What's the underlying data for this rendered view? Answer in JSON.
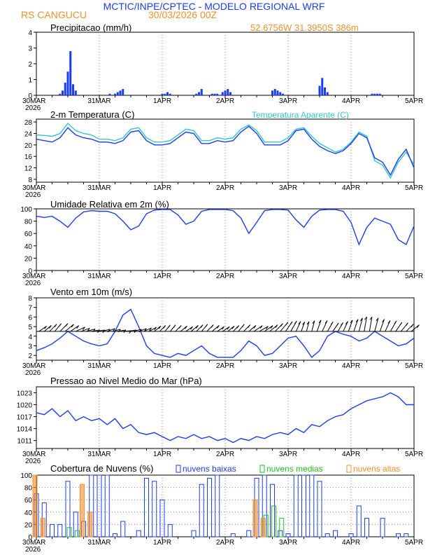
{
  "header": {
    "title": "MCTIC/INPE/CPTEC - MODELO REGIONAL WRF",
    "station": "RS CANGUCU",
    "run": "30/03/2026 00Z",
    "coords": "52.6756W 31.3950S 386m"
  },
  "colors": {
    "blue": "#1c3cf0",
    "cyan": "#30c8c8",
    "orange": "#f09030",
    "green": "#20c020",
    "black": "#000000"
  },
  "x_axis": {
    "labels": [
      "30MAR",
      "31MAR",
      "1APR",
      "2APR",
      "3APR",
      "4APR",
      "5APR"
    ],
    "year": "2026",
    "hours_total": 144
  },
  "chart_data": [
    {
      "id": "precip",
      "type": "bar",
      "title": "Precipitacao (mm/h)",
      "ylim": [
        0,
        4
      ],
      "yticks": [
        0,
        1,
        2,
        3,
        4
      ],
      "series": [
        {
          "name": "Precipitacao",
          "color": "#1c3cf0",
          "x": [
            9,
            10,
            11,
            12,
            13,
            14,
            15,
            28,
            30,
            31,
            32,
            33,
            48,
            49,
            50,
            51,
            61,
            62,
            63,
            67,
            68,
            69,
            71,
            72,
            73,
            74,
            90,
            91,
            92,
            93,
            94,
            108,
            109,
            110,
            111,
            128,
            129,
            130,
            131
          ],
          "values": [
            0.1,
            0.3,
            0.8,
            1.5,
            2.8,
            0.7,
            0.3,
            0.1,
            0.1,
            0.2,
            0.3,
            0.4,
            0.1,
            0.1,
            0.2,
            0.1,
            0.1,
            0.2,
            0.4,
            0.1,
            0.1,
            0.1,
            0.2,
            0.3,
            0.4,
            0.2,
            0.3,
            0.4,
            0.3,
            0.2,
            0.1,
            0.6,
            1.1,
            0.5,
            0.2,
            0.1,
            0.1,
            0.1,
            0.1
          ]
        }
      ]
    },
    {
      "id": "temp",
      "type": "line",
      "title": "2-m Temperatura (C)",
      "legend": "Temperatura Aparente (C)",
      "ylim": [
        7,
        29
      ],
      "yticks": [
        8,
        12,
        16,
        20,
        24,
        28
      ],
      "series": [
        {
          "name": "Temperatura Aparente",
          "color": "#30c8c8",
          "x": [
            0,
            3,
            6,
            9,
            12,
            15,
            18,
            21,
            24,
            27,
            30,
            33,
            36,
            39,
            42,
            45,
            48,
            51,
            54,
            57,
            60,
            63,
            66,
            69,
            72,
            75,
            78,
            81,
            84,
            87,
            90,
            93,
            96,
            99,
            102,
            105,
            108,
            111,
            114,
            117,
            120,
            123,
            126,
            129,
            132,
            135,
            138,
            141,
            144
          ],
          "values": [
            23.5,
            23.3,
            23.0,
            24.0,
            27.5,
            25.0,
            24.0,
            23.5,
            22.0,
            22.0,
            21.5,
            22.5,
            25.5,
            26.0,
            22.5,
            21.0,
            21.0,
            21.5,
            23.5,
            25.5,
            25.0,
            21.5,
            21.5,
            22.5,
            22.0,
            22.5,
            25.5,
            27.0,
            25.0,
            21.0,
            21.0,
            21.0,
            22.5,
            25.5,
            26.0,
            23.0,
            20.5,
            19.0,
            17.5,
            18.5,
            21.0,
            24.5,
            23.0,
            14.5,
            13.0,
            8.5,
            14.0,
            17.5,
            13.0
          ]
        },
        {
          "name": "2-m Temperatura",
          "color": "#1c3cf0",
          "x": [
            0,
            3,
            6,
            9,
            12,
            15,
            18,
            21,
            24,
            27,
            30,
            33,
            36,
            39,
            42,
            45,
            48,
            51,
            54,
            57,
            60,
            63,
            66,
            69,
            72,
            75,
            78,
            81,
            84,
            87,
            90,
            93,
            96,
            99,
            102,
            105,
            108,
            111,
            114,
            117,
            120,
            123,
            126,
            129,
            132,
            135,
            138,
            141,
            144
          ],
          "values": [
            22.0,
            21.5,
            21.0,
            22.5,
            26.0,
            23.5,
            22.5,
            22.0,
            21.0,
            21.0,
            20.5,
            21.5,
            24.5,
            25.0,
            21.5,
            20.0,
            20.0,
            20.5,
            22.5,
            24.5,
            24.0,
            20.5,
            20.5,
            21.5,
            21.0,
            21.5,
            24.5,
            26.5,
            24.0,
            20.0,
            20.0,
            20.0,
            21.5,
            25.0,
            25.5,
            22.0,
            19.5,
            18.0,
            17.0,
            18.0,
            20.5,
            24.0,
            22.5,
            15.5,
            14.0,
            9.5,
            15.0,
            18.5,
            12.0
          ]
        }
      ]
    },
    {
      "id": "rh",
      "type": "line",
      "title": "Umidade Relativa em 2m (%)",
      "ylim": [
        0,
        100
      ],
      "yticks": [
        0,
        20,
        40,
        60,
        80,
        100
      ],
      "series": [
        {
          "name": "Umidade Relativa",
          "color": "#1c3cf0",
          "x": [
            0,
            3,
            6,
            9,
            12,
            15,
            18,
            21,
            24,
            27,
            30,
            33,
            36,
            39,
            42,
            45,
            48,
            51,
            54,
            57,
            60,
            63,
            66,
            69,
            72,
            75,
            78,
            81,
            84,
            87,
            90,
            93,
            96,
            99,
            102,
            105,
            108,
            111,
            114,
            117,
            120,
            123,
            126,
            129,
            132,
            135,
            138,
            141,
            144
          ],
          "values": [
            88,
            86,
            88,
            80,
            70,
            85,
            95,
            97,
            96,
            96,
            92,
            80,
            66,
            72,
            92,
            98,
            99,
            99,
            90,
            75,
            80,
            96,
            99,
            99,
            99,
            97,
            85,
            60,
            78,
            97,
            99,
            99,
            98,
            82,
            70,
            88,
            98,
            99,
            99,
            96,
            78,
            42,
            70,
            85,
            80,
            75,
            50,
            42,
            72
          ]
        }
      ]
    },
    {
      "id": "wind",
      "type": "line",
      "title": "Vento em 10m (m/s)",
      "ylim": [
        1.5,
        8
      ],
      "yticks": [
        2,
        3,
        4,
        5,
        6,
        7,
        8
      ],
      "series": [
        {
          "name": "Vento",
          "color": "#1c3cf0",
          "x": [
            0,
            3,
            6,
            9,
            12,
            15,
            18,
            21,
            24,
            27,
            30,
            33,
            36,
            39,
            42,
            45,
            48,
            51,
            54,
            57,
            60,
            63,
            66,
            69,
            72,
            75,
            78,
            81,
            84,
            87,
            90,
            93,
            96,
            99,
            102,
            105,
            108,
            111,
            114,
            117,
            120,
            123,
            126,
            129,
            132,
            135,
            138,
            141,
            144
          ],
          "values": [
            2.5,
            2.8,
            3.2,
            3.8,
            4.5,
            4.0,
            3.5,
            3.2,
            3.0,
            3.2,
            4.5,
            6.2,
            6.8,
            5.0,
            3.0,
            2.2,
            2.0,
            1.8,
            2.2,
            2.0,
            2.5,
            3.0,
            2.2,
            1.8,
            1.8,
            1.8,
            2.5,
            3.5,
            3.0,
            2.0,
            2.2,
            3.0,
            3.8,
            4.0,
            3.0,
            1.8,
            2.5,
            4.0,
            4.5,
            4.2,
            4.0,
            3.5,
            3.8,
            4.5,
            4.0,
            3.5,
            3.0,
            3.2,
            3.8
          ]
        }
      ],
      "barbs": {
        "x": [
          1,
          3,
          5,
          7,
          9,
          11,
          13,
          15,
          17,
          19,
          21,
          23,
          25,
          27,
          29,
          31,
          33,
          35,
          37,
          39,
          41,
          43,
          45,
          47,
          49,
          51,
          53,
          55,
          57,
          59,
          61,
          63,
          65,
          67,
          69,
          71,
          73,
          75,
          77,
          79,
          81,
          83,
          85,
          87,
          89,
          91,
          93,
          95,
          97,
          99,
          101,
          103,
          105,
          107,
          109,
          111,
          113,
          115,
          117,
          119,
          121,
          123,
          125,
          127,
          129,
          131,
          133,
          135,
          137,
          139,
          141,
          143
        ],
        "angles": [
          -35,
          -40,
          -45,
          -50,
          -45,
          -40,
          -35,
          -25,
          -20,
          -15,
          -10,
          -10,
          -15,
          -20,
          -15,
          -10,
          -5,
          -10,
          -15,
          -20,
          -25,
          -30,
          -40,
          -45,
          -50,
          -50,
          -45,
          -40,
          -35,
          -40,
          -45,
          -50,
          -45,
          -40,
          -35,
          -35,
          -40,
          -45,
          -50,
          -45,
          -40,
          -35,
          -30,
          -35,
          -40,
          -45,
          -50,
          -55,
          -60,
          -65,
          -70,
          -75,
          -75,
          -70,
          -65,
          -60,
          -55,
          -60,
          -65,
          -70,
          -70,
          -75,
          -80,
          -80,
          -75,
          -70,
          -65,
          -60,
          -55,
          -50,
          -45,
          -40
        ],
        "speeds": [
          4,
          4,
          5,
          5,
          6,
          6,
          5,
          5,
          4,
          4,
          3,
          3,
          3,
          3,
          3,
          3,
          3,
          3,
          3,
          3,
          3,
          3,
          3,
          3,
          3,
          3,
          3,
          3,
          3,
          4,
          4,
          4,
          4,
          4,
          3,
          3,
          3,
          3,
          4,
          4,
          4,
          5,
          5,
          5,
          5,
          6,
          7,
          7,
          7,
          6,
          5,
          5,
          6,
          7,
          7,
          6,
          5,
          5,
          6,
          7,
          8,
          9,
          10,
          10,
          9,
          8,
          7,
          7,
          6,
          6,
          5,
          5
        ]
      }
    },
    {
      "id": "pressure",
      "type": "line",
      "title": "Pressao ao Nivel Medio do Mar (hPa)",
      "ylim": [
        1009,
        1024.5
      ],
      "yticks": [
        1011,
        1014,
        1017,
        1020,
        1023
      ],
      "series": [
        {
          "name": "Pressao",
          "color": "#1c3cf0",
          "x": [
            0,
            3,
            6,
            9,
            12,
            15,
            18,
            21,
            24,
            27,
            30,
            33,
            36,
            39,
            42,
            45,
            48,
            51,
            54,
            57,
            60,
            63,
            66,
            69,
            72,
            75,
            78,
            81,
            84,
            87,
            90,
            93,
            96,
            99,
            102,
            105,
            108,
            111,
            114,
            117,
            120,
            123,
            126,
            129,
            132,
            135,
            138,
            141,
            144
          ],
          "values": [
            1018.0,
            1017.5,
            1019.0,
            1017.0,
            1018.5,
            1016.0,
            1017.0,
            1016.0,
            1016.5,
            1015.0,
            1016.5,
            1014.0,
            1015.0,
            1013.0,
            1012.5,
            1013.0,
            1012.0,
            1011.0,
            1012.0,
            1011.5,
            1012.5,
            1011.5,
            1012.0,
            1011.0,
            1011.5,
            1010.5,
            1011.5,
            1011.0,
            1012.0,
            1011.5,
            1012.5,
            1013.0,
            1012.5,
            1014.0,
            1013.0,
            1015.0,
            1014.5,
            1016.0,
            1017.0,
            1017.5,
            1019.0,
            1020.0,
            1021.0,
            1021.5,
            1022.0,
            1023.0,
            1022.0,
            1020.0,
            1020.0
          ]
        }
      ]
    },
    {
      "id": "clouds",
      "type": "bar",
      "title": "Cobertura de Nuvens (%)",
      "ylim": [
        0,
        100
      ],
      "yticks": [
        0,
        20,
        40,
        60,
        80,
        100
      ],
      "legend": [
        "nuvens baixas",
        "nuvens medias",
        "nuvens altas"
      ],
      "series": [
        {
          "name": "nuvens baixas",
          "color": "#1c3cf0",
          "x": [
            0,
            3,
            6,
            9,
            12,
            15,
            18,
            21,
            24,
            27,
            30,
            33,
            36,
            39,
            42,
            45,
            48,
            51,
            54,
            57,
            60,
            63,
            66,
            69,
            72,
            75,
            78,
            81,
            84,
            87,
            90,
            93,
            96,
            99,
            102,
            105,
            108,
            111,
            114,
            117,
            120,
            123,
            126,
            129,
            132,
            135,
            138,
            141,
            144
          ],
          "values": [
            70,
            55,
            20,
            20,
            90,
            40,
            25,
            100,
            100,
            100,
            5,
            25,
            0,
            10,
            95,
            90,
            60,
            20,
            0,
            0,
            10,
            85,
            95,
            100,
            0,
            5,
            0,
            10,
            95,
            100,
            85,
            10,
            5,
            100,
            100,
            100,
            90,
            5,
            10,
            0,
            5,
            50,
            30,
            0,
            30,
            0,
            5,
            5,
            0
          ]
        },
        {
          "name": "nuvens medias",
          "color": "#20c020",
          "x": [
            12,
            15,
            87,
            90,
            93
          ],
          "values": [
            15,
            10,
            35,
            50,
            30
          ]
        },
        {
          "name": "nuvens altas",
          "color": "#f09030",
          "x": [
            0,
            3,
            18,
            21,
            84,
            87
          ],
          "values": [
            100,
            30,
            85,
            40,
            60,
            30
          ]
        }
      ]
    }
  ]
}
